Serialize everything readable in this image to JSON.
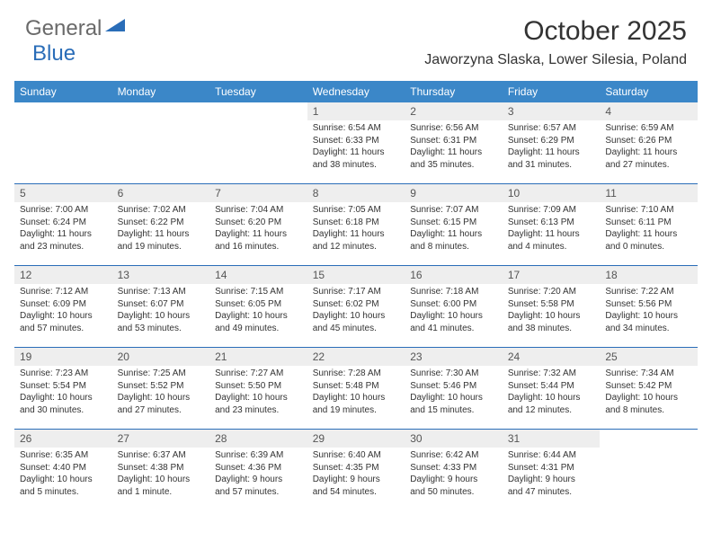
{
  "logo": {
    "text1": "General",
    "text2": "Blue"
  },
  "title": "October 2025",
  "location": "Jaworzyna Slaska, Lower Silesia, Poland",
  "colors": {
    "header_bg": "#3b87c8",
    "header_text": "#ffffff",
    "num_bg": "#eeeeee",
    "rule": "#2a6db8",
    "logo_gray": "#6a6a6a",
    "logo_blue": "#2a6db8"
  },
  "dayNames": [
    "Sunday",
    "Monday",
    "Tuesday",
    "Wednesday",
    "Thursday",
    "Friday",
    "Saturday"
  ],
  "weeks": [
    {
      "nums": [
        "",
        "",
        "",
        "1",
        "2",
        "3",
        "4"
      ],
      "cells": [
        null,
        null,
        null,
        {
          "sunrise": "Sunrise: 6:54 AM",
          "sunset": "Sunset: 6:33 PM",
          "day1": "Daylight: 11 hours",
          "day2": "and 38 minutes."
        },
        {
          "sunrise": "Sunrise: 6:56 AM",
          "sunset": "Sunset: 6:31 PM",
          "day1": "Daylight: 11 hours",
          "day2": "and 35 minutes."
        },
        {
          "sunrise": "Sunrise: 6:57 AM",
          "sunset": "Sunset: 6:29 PM",
          "day1": "Daylight: 11 hours",
          "day2": "and 31 minutes."
        },
        {
          "sunrise": "Sunrise: 6:59 AM",
          "sunset": "Sunset: 6:26 PM",
          "day1": "Daylight: 11 hours",
          "day2": "and 27 minutes."
        }
      ]
    },
    {
      "nums": [
        "5",
        "6",
        "7",
        "8",
        "9",
        "10",
        "11"
      ],
      "cells": [
        {
          "sunrise": "Sunrise: 7:00 AM",
          "sunset": "Sunset: 6:24 PM",
          "day1": "Daylight: 11 hours",
          "day2": "and 23 minutes."
        },
        {
          "sunrise": "Sunrise: 7:02 AM",
          "sunset": "Sunset: 6:22 PM",
          "day1": "Daylight: 11 hours",
          "day2": "and 19 minutes."
        },
        {
          "sunrise": "Sunrise: 7:04 AM",
          "sunset": "Sunset: 6:20 PM",
          "day1": "Daylight: 11 hours",
          "day2": "and 16 minutes."
        },
        {
          "sunrise": "Sunrise: 7:05 AM",
          "sunset": "Sunset: 6:18 PM",
          "day1": "Daylight: 11 hours",
          "day2": "and 12 minutes."
        },
        {
          "sunrise": "Sunrise: 7:07 AM",
          "sunset": "Sunset: 6:15 PM",
          "day1": "Daylight: 11 hours",
          "day2": "and 8 minutes."
        },
        {
          "sunrise": "Sunrise: 7:09 AM",
          "sunset": "Sunset: 6:13 PM",
          "day1": "Daylight: 11 hours",
          "day2": "and 4 minutes."
        },
        {
          "sunrise": "Sunrise: 7:10 AM",
          "sunset": "Sunset: 6:11 PM",
          "day1": "Daylight: 11 hours",
          "day2": "and 0 minutes."
        }
      ]
    },
    {
      "nums": [
        "12",
        "13",
        "14",
        "15",
        "16",
        "17",
        "18"
      ],
      "cells": [
        {
          "sunrise": "Sunrise: 7:12 AM",
          "sunset": "Sunset: 6:09 PM",
          "day1": "Daylight: 10 hours",
          "day2": "and 57 minutes."
        },
        {
          "sunrise": "Sunrise: 7:13 AM",
          "sunset": "Sunset: 6:07 PM",
          "day1": "Daylight: 10 hours",
          "day2": "and 53 minutes."
        },
        {
          "sunrise": "Sunrise: 7:15 AM",
          "sunset": "Sunset: 6:05 PM",
          "day1": "Daylight: 10 hours",
          "day2": "and 49 minutes."
        },
        {
          "sunrise": "Sunrise: 7:17 AM",
          "sunset": "Sunset: 6:02 PM",
          "day1": "Daylight: 10 hours",
          "day2": "and 45 minutes."
        },
        {
          "sunrise": "Sunrise: 7:18 AM",
          "sunset": "Sunset: 6:00 PM",
          "day1": "Daylight: 10 hours",
          "day2": "and 41 minutes."
        },
        {
          "sunrise": "Sunrise: 7:20 AM",
          "sunset": "Sunset: 5:58 PM",
          "day1": "Daylight: 10 hours",
          "day2": "and 38 minutes."
        },
        {
          "sunrise": "Sunrise: 7:22 AM",
          "sunset": "Sunset: 5:56 PM",
          "day1": "Daylight: 10 hours",
          "day2": "and 34 minutes."
        }
      ]
    },
    {
      "nums": [
        "19",
        "20",
        "21",
        "22",
        "23",
        "24",
        "25"
      ],
      "cells": [
        {
          "sunrise": "Sunrise: 7:23 AM",
          "sunset": "Sunset: 5:54 PM",
          "day1": "Daylight: 10 hours",
          "day2": "and 30 minutes."
        },
        {
          "sunrise": "Sunrise: 7:25 AM",
          "sunset": "Sunset: 5:52 PM",
          "day1": "Daylight: 10 hours",
          "day2": "and 27 minutes."
        },
        {
          "sunrise": "Sunrise: 7:27 AM",
          "sunset": "Sunset: 5:50 PM",
          "day1": "Daylight: 10 hours",
          "day2": "and 23 minutes."
        },
        {
          "sunrise": "Sunrise: 7:28 AM",
          "sunset": "Sunset: 5:48 PM",
          "day1": "Daylight: 10 hours",
          "day2": "and 19 minutes."
        },
        {
          "sunrise": "Sunrise: 7:30 AM",
          "sunset": "Sunset: 5:46 PM",
          "day1": "Daylight: 10 hours",
          "day2": "and 15 minutes."
        },
        {
          "sunrise": "Sunrise: 7:32 AM",
          "sunset": "Sunset: 5:44 PM",
          "day1": "Daylight: 10 hours",
          "day2": "and 12 minutes."
        },
        {
          "sunrise": "Sunrise: 7:34 AM",
          "sunset": "Sunset: 5:42 PM",
          "day1": "Daylight: 10 hours",
          "day2": "and 8 minutes."
        }
      ]
    },
    {
      "nums": [
        "26",
        "27",
        "28",
        "29",
        "30",
        "31",
        ""
      ],
      "cells": [
        {
          "sunrise": "Sunrise: 6:35 AM",
          "sunset": "Sunset: 4:40 PM",
          "day1": "Daylight: 10 hours",
          "day2": "and 5 minutes."
        },
        {
          "sunrise": "Sunrise: 6:37 AM",
          "sunset": "Sunset: 4:38 PM",
          "day1": "Daylight: 10 hours",
          "day2": "and 1 minute."
        },
        {
          "sunrise": "Sunrise: 6:39 AM",
          "sunset": "Sunset: 4:36 PM",
          "day1": "Daylight: 9 hours",
          "day2": "and 57 minutes."
        },
        {
          "sunrise": "Sunrise: 6:40 AM",
          "sunset": "Sunset: 4:35 PM",
          "day1": "Daylight: 9 hours",
          "day2": "and 54 minutes."
        },
        {
          "sunrise": "Sunrise: 6:42 AM",
          "sunset": "Sunset: 4:33 PM",
          "day1": "Daylight: 9 hours",
          "day2": "and 50 minutes."
        },
        {
          "sunrise": "Sunrise: 6:44 AM",
          "sunset": "Sunset: 4:31 PM",
          "day1": "Daylight: 9 hours",
          "day2": "and 47 minutes."
        },
        null
      ]
    }
  ]
}
